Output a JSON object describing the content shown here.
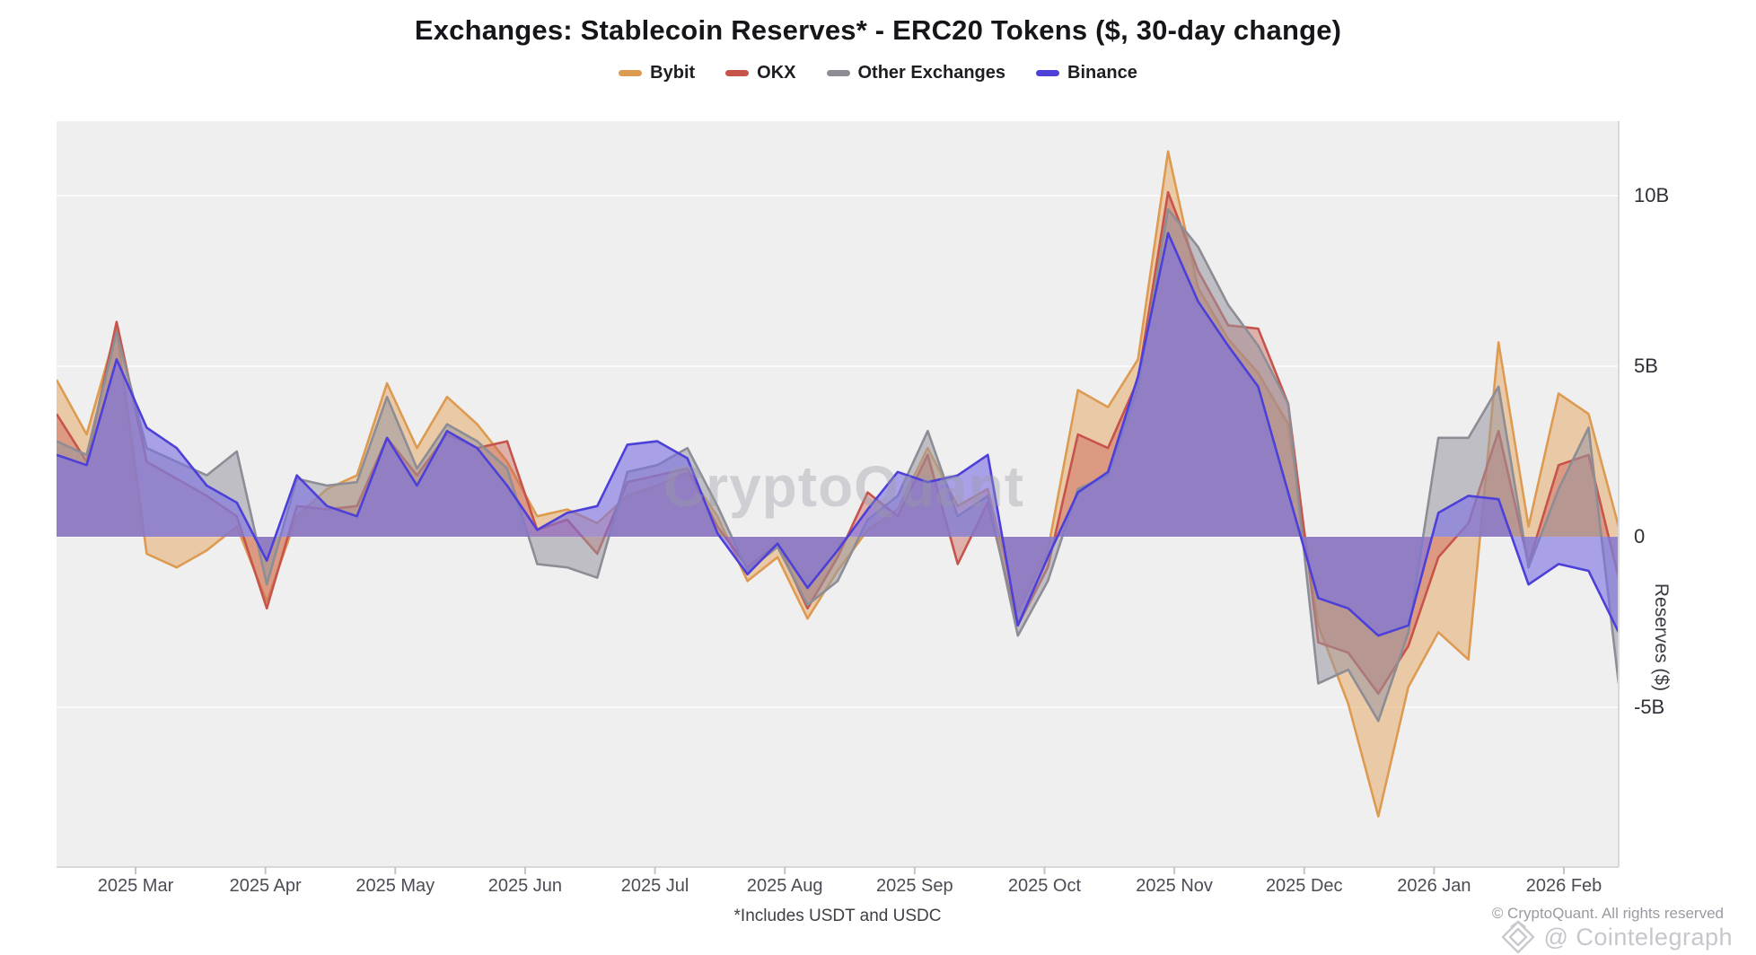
{
  "chart_data": {
    "type": "area",
    "title": "Exchanges: Stablecoin Reserves* - ERC20 Tokens ($, 30-day change)",
    "ylabel": "Reserves ($)",
    "unit": "billions USD",
    "ylim": [
      -9.7,
      12.2
    ],
    "zero_baseline": true,
    "grid": "horizontal",
    "legend_position": "top-center",
    "y_ticks": [
      {
        "label": "10B",
        "value": 10
      },
      {
        "label": "5B",
        "value": 5
      },
      {
        "label": "0",
        "value": 0
      },
      {
        "label": "-5B",
        "value": -5
      }
    ],
    "x_ticks": [
      "2025 Mar",
      "2025 Apr",
      "2025 May",
      "2025 Jun",
      "2025 Jul",
      "2025 Aug",
      "2025 Sep",
      "2025 Oct",
      "2025 Nov",
      "2025 Dec",
      "2026 Jan",
      "2026 Feb"
    ],
    "categories": [
      "2025-02-15",
      "2025-02-22",
      "2025-03-01",
      "2025-03-08",
      "2025-03-15",
      "2025-03-22",
      "2025-03-29",
      "2025-04-05",
      "2025-04-12",
      "2025-04-19",
      "2025-04-26",
      "2025-05-03",
      "2025-05-10",
      "2025-05-17",
      "2025-05-24",
      "2025-05-31",
      "2025-06-07",
      "2025-06-14",
      "2025-06-21",
      "2025-06-28",
      "2025-07-05",
      "2025-07-12",
      "2025-07-19",
      "2025-07-26",
      "2025-08-02",
      "2025-08-09",
      "2025-08-16",
      "2025-08-23",
      "2025-08-30",
      "2025-09-06",
      "2025-09-13",
      "2025-09-20",
      "2025-09-27",
      "2025-10-04",
      "2025-10-11",
      "2025-10-18",
      "2025-10-25",
      "2025-11-01",
      "2025-11-08",
      "2025-11-15",
      "2025-11-22",
      "2025-11-29",
      "2025-12-06",
      "2025-12-13",
      "2025-12-20",
      "2025-12-27",
      "2026-01-03",
      "2026-01-10",
      "2026-01-17",
      "2026-01-24",
      "2026-01-31",
      "2026-02-07",
      "2026-02-14"
    ],
    "series": [
      {
        "name": "Bybit",
        "color": "#dd9b52",
        "fill": "rgba(228,163,92,0.50)",
        "values": [
          4.6,
          3.0,
          6.1,
          -0.5,
          -0.9,
          -0.4,
          0.3,
          -1.9,
          0.6,
          1.4,
          1.8,
          4.5,
          2.6,
          4.1,
          3.3,
          2.2,
          0.6,
          0.8,
          0.4,
          1.2,
          1.5,
          1.9,
          0.6,
          -1.3,
          -0.6,
          -2.4,
          -1.0,
          0.2,
          0.8,
          2.6,
          0.9,
          1.4,
          -2.2,
          -0.4,
          4.3,
          3.8,
          5.2,
          11.3,
          7.3,
          5.8,
          4.8,
          3.3,
          -2.6,
          -4.9,
          -8.2,
          -4.4,
          -2.8,
          -3.6,
          5.7,
          0.3,
          4.2,
          3.6,
          0.3
        ]
      },
      {
        "name": "OKX",
        "color": "#c6544b",
        "fill": "rgba(201,90,82,0.42)",
        "values": [
          3.6,
          2.2,
          6.3,
          2.2,
          1.7,
          1.2,
          0.6,
          -2.1,
          0.9,
          0.8,
          0.9,
          2.9,
          1.8,
          3.0,
          2.6,
          2.8,
          0.2,
          0.5,
          -0.5,
          1.6,
          1.8,
          2.0,
          0.3,
          -0.9,
          -0.2,
          -2.1,
          -0.6,
          1.3,
          0.6,
          2.4,
          -0.8,
          1.0,
          -2.6,
          -0.9,
          3.0,
          2.6,
          4.6,
          10.1,
          7.8,
          6.2,
          6.1,
          3.9,
          -3.1,
          -3.4,
          -4.6,
          -3.2,
          -0.6,
          0.4,
          3.1,
          -0.8,
          2.1,
          2.4,
          -1.2
        ]
      },
      {
        "name": "Other Exchanges",
        "color": "#8d8d95",
        "fill": "rgba(152,150,160,0.55)",
        "values": [
          2.8,
          2.4,
          6.0,
          2.6,
          2.2,
          1.8,
          2.5,
          -1.4,
          1.7,
          1.5,
          1.6,
          4.1,
          2.0,
          3.3,
          2.8,
          2.0,
          -0.8,
          -0.9,
          -1.2,
          1.9,
          2.1,
          2.6,
          0.9,
          -1.0,
          -0.3,
          -2.0,
          -1.3,
          0.5,
          1.2,
          3.1,
          0.6,
          1.2,
          -2.9,
          -1.3,
          1.4,
          1.8,
          4.4,
          9.6,
          8.5,
          6.8,
          5.6,
          3.9,
          -4.3,
          -3.9,
          -5.4,
          -2.8,
          2.9,
          2.9,
          4.4,
          -0.9,
          1.4,
          3.2,
          -4.3
        ]
      },
      {
        "name": "Binance",
        "color": "#4c40d8",
        "fill": "rgba(124,113,226,0.62)",
        "values": [
          2.4,
          2.1,
          5.2,
          3.2,
          2.6,
          1.5,
          1.0,
          -0.7,
          1.8,
          0.9,
          0.6,
          2.9,
          1.5,
          3.1,
          2.6,
          1.5,
          0.2,
          0.7,
          0.9,
          2.7,
          2.8,
          2.3,
          0.1,
          -1.1,
          -0.2,
          -1.5,
          -0.4,
          0.8,
          1.9,
          1.6,
          1.8,
          2.4,
          -2.6,
          -0.6,
          1.3,
          1.9,
          4.7,
          8.9,
          6.9,
          5.6,
          4.4,
          1.3,
          -1.8,
          -2.1,
          -2.9,
          -2.6,
          0.7,
          1.2,
          1.1,
          -1.4,
          -0.8,
          -1.0,
          -2.8
        ]
      }
    ]
  },
  "watermarks": {
    "center": "CryptoQuant",
    "bottom_text": "@ Cointelegraph"
  },
  "footer": {
    "note": "*Includes USDT and USDC",
    "copyright": "© CryptoQuant. All rights reserved"
  },
  "colors": {
    "plot_background": "#f0eff0",
    "gridline": "#fafafa",
    "axis_line": "#d7d7dc"
  }
}
